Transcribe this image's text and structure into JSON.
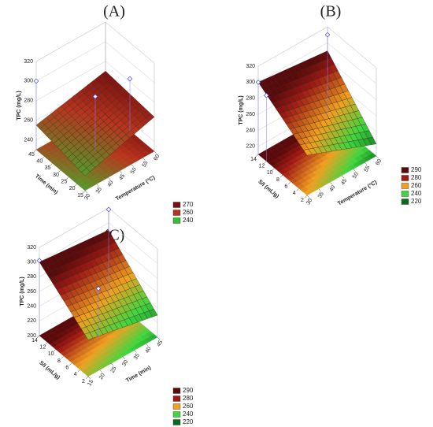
{
  "chart_data": [
    {
      "type": "surface",
      "title": "(A)",
      "xlabel": "Temperature (°C)",
      "ylabel": "Time (min)",
      "zlabel": "TPC (mg/L)",
      "xlim": [
        30,
        60
      ],
      "ylim": [
        15,
        45
      ],
      "zlim": [
        230,
        320
      ],
      "xticks": [
        30,
        35,
        40,
        45,
        50,
        55,
        60
      ],
      "yticks": [
        15,
        20,
        25,
        30,
        35,
        40,
        45
      ],
      "zticks": [
        240,
        260,
        280,
        300,
        320
      ],
      "surface": {
        "x": [
          30,
          60
        ],
        "y": [
          15,
          45
        ],
        "z": [
          [
            245,
            265
          ],
          [
            255,
            270
          ]
        ]
      },
      "points": [
        [
          30,
          45,
          300
        ],
        [
          45,
          30,
          285
        ],
        [
          60,
          30,
          283
        ]
      ],
      "legend": {
        "levels": [
          270,
          260,
          240
        ],
        "colors": [
          "#7a0f0f",
          "#b8341c",
          "#2fc12f"
        ]
      }
    },
    {
      "type": "surface",
      "title": "(B)",
      "xlabel": "Temperature (°C)",
      "ylabel": "S/I (mL/g)",
      "zlabel": "TPC (mg/L)",
      "xlim": [
        30,
        60
      ],
      "ylim": [
        2,
        14
      ],
      "zlim": [
        210,
        320
      ],
      "xticks": [
        30,
        35,
        40,
        45,
        50,
        55,
        60
      ],
      "yticks": [
        2,
        4,
        6,
        8,
        10,
        12,
        14
      ],
      "zticks": [
        220,
        240,
        260,
        280,
        300,
        320
      ],
      "surface": {
        "x": [
          30,
          60
        ],
        "y": [
          2,
          14
        ],
        "z": [
          [
            260,
            225
          ],
          [
            300,
            290
          ]
        ]
      },
      "points": [
        [
          30,
          14,
          300
        ],
        [
          30,
          12,
          292
        ],
        [
          60,
          14,
          310
        ]
      ],
      "legend": {
        "levels": [
          290,
          280,
          260,
          240,
          220
        ],
        "colors": [
          "#5a0a0a",
          "#a01a14",
          "#f0a020",
          "#3fd63f",
          "#0a6a1a"
        ]
      }
    },
    {
      "type": "surface",
      "title": "(C)",
      "xlabel": "Time (min)",
      "ylabel": "S/I (mL/g)",
      "zlabel": "TPC (mg/L)",
      "xlim": [
        15,
        45
      ],
      "ylim": [
        2,
        14
      ],
      "zlim": [
        200,
        320
      ],
      "xticks": [
        15,
        20,
        25,
        30,
        35,
        40,
        45
      ],
      "yticks": [
        2,
        4,
        6,
        8,
        10,
        12,
        14
      ],
      "zticks": [
        200,
        220,
        240,
        260,
        280,
        300,
        320
      ],
      "surface": {
        "x": [
          15,
          45
        ],
        "y": [
          2,
          14
        ],
        "z": [
          [
            250,
            230
          ],
          [
            300,
            290
          ]
        ]
      },
      "points": [
        [
          15,
          14,
          302
        ],
        [
          45,
          14,
          318
        ],
        [
          30,
          8,
          265
        ]
      ],
      "legend": {
        "levels": [
          290,
          280,
          260,
          240,
          220
        ],
        "colors": [
          "#5a0a0a",
          "#a01a14",
          "#f0a020",
          "#3fd63f",
          "#0a6a1a"
        ]
      }
    }
  ]
}
